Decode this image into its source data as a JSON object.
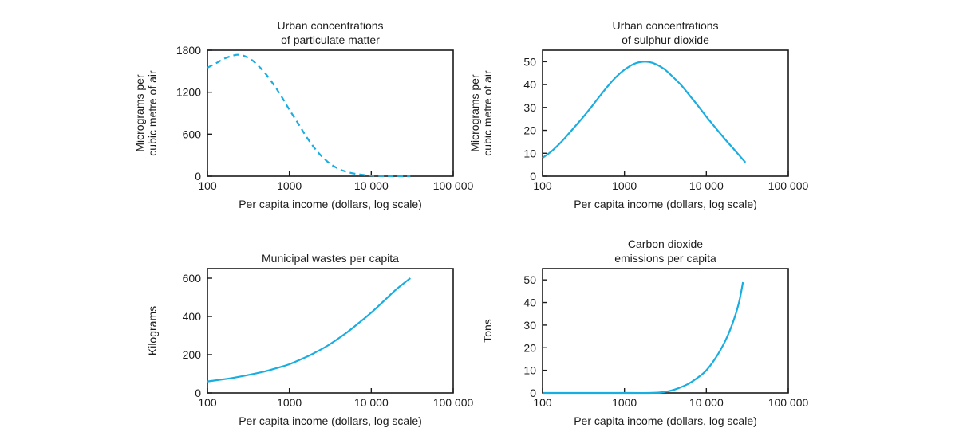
{
  "chart_data": [
    {
      "type": "line",
      "title": [
        "Urban concentrations",
        "of particulate matter"
      ],
      "xlabel": "Per capita income (dollars, log scale)",
      "ylabel": [
        "Micrograms per",
        "cubic metre of air"
      ],
      "x_scale": "log",
      "xlim": [
        100,
        100000
      ],
      "xticks": [
        100,
        1000,
        10000,
        100000
      ],
      "xtick_labels": [
        "100",
        "1000",
        "10 000",
        "100 000"
      ],
      "ylim": [
        0,
        1800
      ],
      "yticks": [
        0,
        600,
        1200,
        1800
      ],
      "ytick_labels": [
        "0",
        "600",
        "1200",
        "1800"
      ],
      "line_style": "dashed",
      "color": "#1aaee0",
      "series": [
        {
          "x": [
            100,
            130,
            160,
            200,
            230,
            270,
            330,
            400,
            500,
            650,
            800,
            1000,
            1300,
            1600,
            2000,
            2500,
            3200,
            4000,
            5000,
            6500,
            8000,
            10000,
            13000,
            16000,
            20000,
            25000,
            30000
          ],
          "values": [
            1550,
            1620,
            1680,
            1720,
            1735,
            1725,
            1680,
            1600,
            1480,
            1300,
            1140,
            950,
            740,
            570,
            410,
            280,
            170,
            105,
            62,
            33,
            18,
            9,
            4,
            2,
            1,
            0,
            0
          ]
        }
      ]
    },
    {
      "type": "line",
      "title": [
        "Urban concentrations",
        "of sulphur dioxide"
      ],
      "xlabel": "Per capita income (dollars, log scale)",
      "ylabel": [
        "Micrograms per",
        "cubic metre of air"
      ],
      "x_scale": "log",
      "xlim": [
        100,
        100000
      ],
      "xticks": [
        100,
        1000,
        10000,
        100000
      ],
      "xtick_labels": [
        "100",
        "1000",
        "10 000",
        "100 000"
      ],
      "ylim": [
        0,
        55
      ],
      "yticks": [
        0,
        10,
        20,
        30,
        40,
        50
      ],
      "ytick_labels": [
        "0",
        "10",
        "20",
        "30",
        "40",
        "50"
      ],
      "line_style": "solid",
      "color": "#1aaee0",
      "series": [
        {
          "x": [
            100,
            130,
            170,
            220,
            300,
            400,
            500,
            650,
            800,
            1000,
            1300,
            1700,
            2200,
            3000,
            4000,
            5000,
            6500,
            8000,
            10000,
            13000,
            17000,
            22000,
            30000
          ],
          "values": [
            8,
            11,
            15,
            19.5,
            25,
            30.5,
            35,
            40,
            43.5,
            46.5,
            49,
            50,
            49.5,
            47,
            43,
            39.5,
            34.5,
            30.5,
            26,
            21,
            16,
            11.5,
            6
          ]
        }
      ]
    },
    {
      "type": "line",
      "title": "Municipal wastes per capita",
      "xlabel": "Per capita income (dollars, log scale)",
      "ylabel": "Kilograms",
      "x_scale": "log",
      "xlim": [
        100,
        100000
      ],
      "xticks": [
        100,
        1000,
        10000,
        100000
      ],
      "xtick_labels": [
        "100",
        "1000",
        "10 000",
        "100 000"
      ],
      "ylim": [
        0,
        650
      ],
      "yticks": [
        0,
        200,
        400,
        600
      ],
      "ytick_labels": [
        "0",
        "200",
        "400",
        "600"
      ],
      "line_style": "solid",
      "color": "#1aaee0",
      "series": [
        {
          "x": [
            100,
            150,
            200,
            300,
            500,
            700,
            1000,
            1500,
            2000,
            3000,
            5000,
            7000,
            10000,
            15000,
            20000,
            30000
          ],
          "values": [
            60,
            70,
            78,
            92,
            112,
            130,
            150,
            182,
            208,
            250,
            315,
            365,
            420,
            490,
            540,
            600
          ]
        }
      ]
    },
    {
      "type": "line",
      "title": [
        "Carbon dioxide",
        "emissions per capita"
      ],
      "xlabel": "Per capita income (dollars, log scale)",
      "ylabel": "Tons",
      "x_scale": "log",
      "xlim": [
        100,
        100000
      ],
      "xticks": [
        100,
        1000,
        10000,
        100000
      ],
      "xtick_labels": [
        "100",
        "1000",
        "10 000",
        "100 000"
      ],
      "ylim": [
        0,
        55
      ],
      "yticks": [
        0,
        10,
        20,
        30,
        40,
        50
      ],
      "ytick_labels": [
        "0",
        "10",
        "20",
        "30",
        "40",
        "50"
      ],
      "line_style": "solid",
      "color": "#1aaee0",
      "series": [
        {
          "x": [
            100,
            500,
            1000,
            2000,
            2700,
            3500,
            4500,
            6000,
            8000,
            10000,
            13000,
            17000,
            21000,
            25000,
            28000
          ],
          "values": [
            0,
            0,
            0,
            0,
            0.2,
            0.8,
            2,
            4,
            7,
            10,
            15.5,
            23,
            31,
            40,
            49
          ]
        }
      ]
    }
  ]
}
